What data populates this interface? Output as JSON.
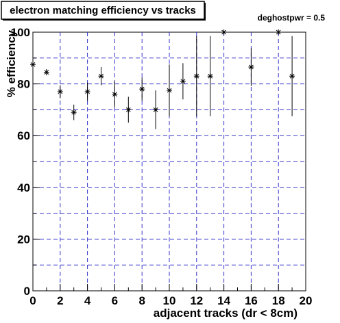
{
  "chart_data": {
    "type": "scatter",
    "title": "electron matching efficiency vs tracks",
    "annotation": "deghostpwr = 0.5",
    "xlabel": "adjacent tracks (dr < 8cm)",
    "ylabel": "% efficiency",
    "xlim": [
      0,
      20
    ],
    "ylim": [
      0,
      100
    ],
    "x_ticks": [
      0,
      2,
      4,
      6,
      8,
      10,
      12,
      14,
      16,
      18,
      20
    ],
    "y_ticks": [
      0,
      20,
      40,
      60,
      80,
      100
    ],
    "grid": true,
    "colors": {
      "grid": "#3333cc",
      "markers": "#000000",
      "axes": "#000000",
      "background": "#ffffff"
    },
    "series": [
      {
        "marker": "asterisk",
        "points": [
          {
            "x": 0,
            "y": 87.5,
            "err": 0.8
          },
          {
            "x": 1,
            "y": 84.5,
            "err": 1.2
          },
          {
            "x": 2,
            "y": 77,
            "err": 2.5
          },
          {
            "x": 3,
            "y": 69,
            "err": 3
          },
          {
            "x": 4,
            "y": 77,
            "err": 3.5
          },
          {
            "x": 5,
            "y": 83,
            "err": 3.5
          },
          {
            "x": 6,
            "y": 76,
            "err": 5
          },
          {
            "x": 7,
            "y": 70,
            "err": 5
          },
          {
            "x": 8,
            "y": 78,
            "err": 4.5
          },
          {
            "x": 9,
            "y": 70,
            "err": 7.5
          },
          {
            "x": 10,
            "y": 77.5,
            "err": 10
          },
          {
            "x": 11,
            "y": 81,
            "err": 7
          },
          {
            "x": 12,
            "y": 83,
            "err": 15.5
          },
          {
            "x": 13,
            "y": 83,
            "err": 15.5
          },
          {
            "x": 14,
            "y": 100,
            "err": 0
          },
          {
            "x": 16,
            "y": 86.5,
            "err": 7.3
          },
          {
            "x": 18,
            "y": 100,
            "err": 0
          },
          {
            "x": 19,
            "y": 83,
            "err": 15.5
          }
        ]
      }
    ]
  }
}
